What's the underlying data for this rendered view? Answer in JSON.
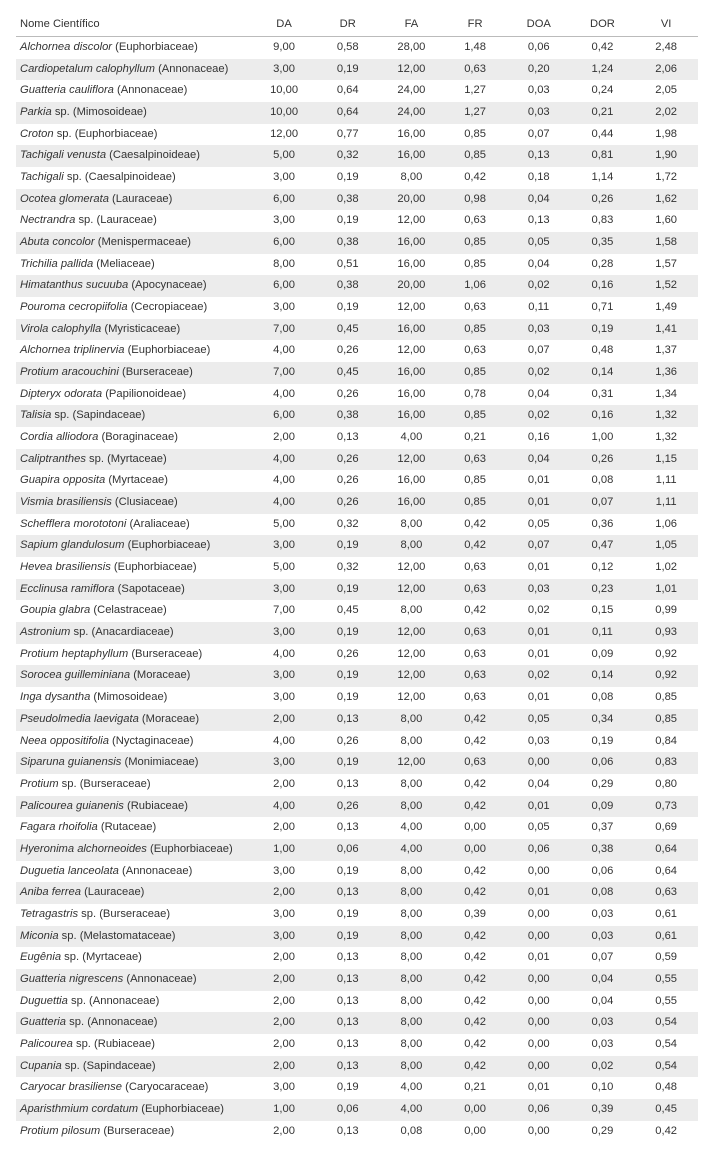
{
  "table": {
    "columns": [
      "Nome Científico",
      "DA",
      "DR",
      "FA",
      "FR",
      "DOA",
      "DOR",
      "VI"
    ],
    "col_widths": [
      "230px",
      "62px",
      "62px",
      "62px",
      "62px",
      "62px",
      "62px",
      "62px"
    ],
    "header_align": [
      "left",
      "center",
      "center",
      "center",
      "center",
      "center",
      "center",
      "center"
    ],
    "row_bg_even": "#ececec",
    "row_bg_odd": "#ffffff",
    "border_color": "#bbbbbb",
    "font_size": 11.2,
    "text_color": "#333333",
    "rows": [
      {
        "species": "Alchornea discolor",
        "family": "(Euphorbiaceae)",
        "DA": "9,00",
        "DR": "0,58",
        "FA": "28,00",
        "FR": "1,48",
        "DOA": "0,06",
        "DOR": "0,42",
        "VI": "2,48"
      },
      {
        "species": "Cardiopetalum calophyllum",
        "family": "(Annonaceae)",
        "DA": "3,00",
        "DR": "0,19",
        "FA": "12,00",
        "FR": "0,63",
        "DOA": "0,20",
        "DOR": "1,24",
        "VI": "2,06"
      },
      {
        "species": "Guatteria cauliflora",
        "family": "(Annonaceae)",
        "DA": "10,00",
        "DR": "0,64",
        "FA": "24,00",
        "FR": "1,27",
        "DOA": "0,03",
        "DOR": "0,24",
        "VI": "2,05"
      },
      {
        "species": "Parkia",
        "sp": true,
        "family": "(Mimosoideae)",
        "DA": "10,00",
        "DR": "0,64",
        "FA": "24,00",
        "FR": "1,27",
        "DOA": "0,03",
        "DOR": "0,21",
        "VI": "2,02"
      },
      {
        "species": "Croton",
        "sp": true,
        "family": "(Euphorbiaceae)",
        "DA": "12,00",
        "DR": "0,77",
        "FA": "16,00",
        "FR": "0,85",
        "DOA": "0,07",
        "DOR": "0,44",
        "VI": "1,98"
      },
      {
        "species": "Tachigali venusta",
        "family": "(Caesalpinoideae)",
        "DA": "5,00",
        "DR": "0,32",
        "FA": "16,00",
        "FR": "0,85",
        "DOA": "0,13",
        "DOR": "0,81",
        "VI": "1,90"
      },
      {
        "species": "Tachigali",
        "sp": true,
        "family": "(Caesalpinoideae)",
        "DA": "3,00",
        "DR": "0,19",
        "FA": "8,00",
        "FR": "0,42",
        "DOA": "0,18",
        "DOR": "1,14",
        "VI": "1,72"
      },
      {
        "species": "Ocotea glomerata",
        "family": "(Lauraceae)",
        "DA": "6,00",
        "DR": "0,38",
        "FA": "20,00",
        "FR": "0,98",
        "DOA": "0,04",
        "DOR": "0,26",
        "VI": "1,62"
      },
      {
        "species": "Nectrandra",
        "sp": true,
        "family": "(Lauraceae)",
        "DA": "3,00",
        "DR": "0,19",
        "FA": "12,00",
        "FR": "0,63",
        "DOA": "0,13",
        "DOR": "0,83",
        "VI": "1,60"
      },
      {
        "species": "Abuta concolor",
        "family": "(Menispermaceae)",
        "DA": "6,00",
        "DR": "0,38",
        "FA": "16,00",
        "FR": "0,85",
        "DOA": "0,05",
        "DOR": "0,35",
        "VI": "1,58"
      },
      {
        "species": "Trichilia pallida",
        "family": "(Meliaceae)",
        "DA": "8,00",
        "DR": "0,51",
        "FA": "16,00",
        "FR": "0,85",
        "DOA": "0,04",
        "DOR": "0,28",
        "VI": "1,57"
      },
      {
        "species": "Himatanthus sucuuba",
        "family": "(Apocynaceae)",
        "DA": "6,00",
        "DR": "0,38",
        "FA": "20,00",
        "FR": "1,06",
        "DOA": "0,02",
        "DOR": "0,16",
        "VI": "1,52"
      },
      {
        "species": "Pouroma cecropiifolia",
        "family": "(Cecropiaceae)",
        "DA": "3,00",
        "DR": "0,19",
        "FA": "12,00",
        "FR": "0,63",
        "DOA": "0,11",
        "DOR": "0,71",
        "VI": "1,49"
      },
      {
        "species": "Virola calophylla",
        "family": "(Myristicaceae)",
        "DA": "7,00",
        "DR": "0,45",
        "FA": "16,00",
        "FR": "0,85",
        "DOA": "0,03",
        "DOR": "0,19",
        "VI": "1,41"
      },
      {
        "species": "Alchornea triplinervia",
        "family": "(Euphorbiaceae)",
        "DA": "4,00",
        "DR": "0,26",
        "FA": "12,00",
        "FR": "0,63",
        "DOA": "0,07",
        "DOR": "0,48",
        "VI": "1,37"
      },
      {
        "species": "Protium aracouchini",
        "family": "(Burseraceae)",
        "DA": "7,00",
        "DR": "0,45",
        "FA": "16,00",
        "FR": "0,85",
        "DOA": "0,02",
        "DOR": "0,14",
        "VI": "1,36"
      },
      {
        "species": "Dipteryx odorata",
        "family": "(Papilionoideae)",
        "DA": "4,00",
        "DR": "0,26",
        "FA": "16,00",
        "FR": "0,78",
        "DOA": "0,04",
        "DOR": "0,31",
        "VI": "1,34"
      },
      {
        "species": "Talisia",
        "sp": true,
        "family": "(Sapindaceae)",
        "DA": "6,00",
        "DR": "0,38",
        "FA": "16,00",
        "FR": "0,85",
        "DOA": "0,02",
        "DOR": "0,16",
        "VI": "1,32"
      },
      {
        "species": "Cordia alliodora",
        "family": "(Boraginaceae)",
        "DA": "2,00",
        "DR": "0,13",
        "FA": "4,00",
        "FR": "0,21",
        "DOA": "0,16",
        "DOR": "1,00",
        "VI": "1,32"
      },
      {
        "species": "Caliptranthes",
        "sp": true,
        "family": "(Myrtaceae)",
        "DA": "4,00",
        "DR": "0,26",
        "FA": "12,00",
        "FR": "0,63",
        "DOA": "0,04",
        "DOR": "0,26",
        "VI": "1,15"
      },
      {
        "species": "Guapira opposita",
        "family": "(Myrtaceae)",
        "DA": "4,00",
        "DR": "0,26",
        "FA": "16,00",
        "FR": "0,85",
        "DOA": "0,01",
        "DOR": "0,08",
        "VI": "1,11"
      },
      {
        "species": "Vismia brasiliensis",
        "family": "(Clusiaceae)",
        "DA": "4,00",
        "DR": "0,26",
        "FA": "16,00",
        "FR": "0,85",
        "DOA": "0,01",
        "DOR": "0,07",
        "VI": "1,11"
      },
      {
        "species": "Schefflera morototoni",
        "family": "(Araliaceae)",
        "DA": "5,00",
        "DR": "0,32",
        "FA": "8,00",
        "FR": "0,42",
        "DOA": "0,05",
        "DOR": "0,36",
        "VI": "1,06"
      },
      {
        "species": "Sapium glandulosum",
        "family": "(Euphorbiaceae)",
        "DA": "3,00",
        "DR": "0,19",
        "FA": "8,00",
        "FR": "0,42",
        "DOA": "0,07",
        "DOR": "0,47",
        "VI": "1,05"
      },
      {
        "species": "Hevea brasiliensis",
        "family": "(Euphorbiaceae)",
        "DA": "5,00",
        "DR": "0,32",
        "FA": "12,00",
        "FR": "0,63",
        "DOA": "0,01",
        "DOR": "0,12",
        "VI": "1,02"
      },
      {
        "species": "Ecclinusa ramiflora",
        "family": "(Sapotaceae)",
        "DA": "3,00",
        "DR": "0,19",
        "FA": "12,00",
        "FR": "0,63",
        "DOA": "0,03",
        "DOR": "0,23",
        "VI": "1,01"
      },
      {
        "species": "Goupia glabra",
        "family": "(Celastraceae)",
        "DA": "7,00",
        "DR": "0,45",
        "FA": "8,00",
        "FR": "0,42",
        "DOA": "0,02",
        "DOR": "0,15",
        "VI": "0,99"
      },
      {
        "species": "Astronium",
        "sp": true,
        "family": "(Anacardiaceae)",
        "DA": "3,00",
        "DR": "0,19",
        "FA": "12,00",
        "FR": "0,63",
        "DOA": "0,01",
        "DOR": "0,11",
        "VI": "0,93"
      },
      {
        "species": "Protium heptaphyllum",
        "family": "(Burseraceae)",
        "DA": "4,00",
        "DR": "0,26",
        "FA": "12,00",
        "FR": "0,63",
        "DOA": "0,01",
        "DOR": "0,09",
        "VI": "0,92"
      },
      {
        "species": "Sorocea guilleminiana",
        "family": "(Moraceae)",
        "DA": "3,00",
        "DR": "0,19",
        "FA": "12,00",
        "FR": "0,63",
        "DOA": "0,02",
        "DOR": "0,14",
        "VI": "0,92"
      },
      {
        "species": "Inga dysantha",
        "family": "(Mimosoideae)",
        "DA": "3,00",
        "DR": "0,19",
        "FA": "12,00",
        "FR": "0,63",
        "DOA": "0,01",
        "DOR": "0,08",
        "VI": "0,85"
      },
      {
        "species": "Pseudolmedia laevigata",
        "family": "(Moraceae)",
        "DA": "2,00",
        "DR": "0,13",
        "FA": "8,00",
        "FR": "0,42",
        "DOA": "0,05",
        "DOR": "0,34",
        "VI": "0,85"
      },
      {
        "species": "Neea oppositifolia",
        "family": "(Nyctaginaceae)",
        "DA": "4,00",
        "DR": "0,26",
        "FA": "8,00",
        "FR": "0,42",
        "DOA": "0,03",
        "DOR": "0,19",
        "VI": "0,84"
      },
      {
        "species": "Siparuna guianensis",
        "family": "(Monimiaceae)",
        "DA": "3,00",
        "DR": "0,19",
        "FA": "12,00",
        "FR": "0,63",
        "DOA": "0,00",
        "DOR": "0,06",
        "VI": "0,83"
      },
      {
        "species": "Protium",
        "sp": true,
        "family": "(Burseraceae)",
        "DA": "2,00",
        "DR": "0,13",
        "FA": "8,00",
        "FR": "0,42",
        "DOA": "0,04",
        "DOR": "0,29",
        "VI": "0,80"
      },
      {
        "species": "Palicourea guianenis",
        "family": "(Rubiaceae)",
        "DA": "4,00",
        "DR": "0,26",
        "FA": "8,00",
        "FR": "0,42",
        "DOA": "0,01",
        "DOR": "0,09",
        "VI": "0,73"
      },
      {
        "species": "Fagara rhoifolia",
        "family": "(Rutaceae)",
        "DA": "2,00",
        "DR": "0,13",
        "FA": "4,00",
        "FR": "0,00",
        "DOA": "0,05",
        "DOR": "0,37",
        "VI": "0,69"
      },
      {
        "species": "Hyeronima alchorneoides",
        "family": "(Euphorbiaceae)",
        "DA": "1,00",
        "DR": "0,06",
        "FA": "4,00",
        "FR": "0,00",
        "DOA": "0,06",
        "DOR": "0,38",
        "VI": "0,64"
      },
      {
        "species": "Duguetia lanceolata",
        "family": "(Annonaceae)",
        "DA": "3,00",
        "DR": "0,19",
        "FA": "8,00",
        "FR": "0,42",
        "DOA": "0,00",
        "DOR": "0,06",
        "VI": "0,64"
      },
      {
        "species": "Aniba ferrea",
        "family": "(Lauraceae)",
        "DA": "2,00",
        "DR": "0,13",
        "FA": "8,00",
        "FR": "0,42",
        "DOA": "0,01",
        "DOR": "0,08",
        "VI": "0,63"
      },
      {
        "species": "Tetragastris",
        "sp": true,
        "family": "(Burseraceae)",
        "DA": "3,00",
        "DR": "0,19",
        "FA": "8,00",
        "FR": "0,39",
        "DOA": "0,00",
        "DOR": "0,03",
        "VI": "0,61"
      },
      {
        "species": "Miconia",
        "sp": true,
        "family": "(Melastomataceae)",
        "DA": "3,00",
        "DR": "0,19",
        "FA": "8,00",
        "FR": "0,42",
        "DOA": "0,00",
        "DOR": "0,03",
        "VI": "0,61"
      },
      {
        "species": "Eugênia",
        "sp": true,
        "family": "(Myrtaceae)",
        "DA": "2,00",
        "DR": "0,13",
        "FA": "8,00",
        "FR": "0,42",
        "DOA": "0,01",
        "DOR": "0,07",
        "VI": "0,59"
      },
      {
        "species": "Guatteria nigrescens",
        "family": "(Annonaceae)",
        "DA": "2,00",
        "DR": "0,13",
        "FA": "8,00",
        "FR": "0,42",
        "DOA": "0,00",
        "DOR": "0,04",
        "VI": "0,55"
      },
      {
        "species": "Duguettia",
        "sp": true,
        "family": "(Annonaceae)",
        "DA": "2,00",
        "DR": "0,13",
        "FA": "8,00",
        "FR": "0,42",
        "DOA": "0,00",
        "DOR": "0,04",
        "VI": "0,55"
      },
      {
        "species": "Guatteria",
        "sp": true,
        "family": "(Annonaceae)",
        "DA": "2,00",
        "DR": "0,13",
        "FA": "8,00",
        "FR": "0,42",
        "DOA": "0,00",
        "DOR": "0,03",
        "VI": "0,54"
      },
      {
        "species": "Palicourea",
        "sp": true,
        "family": "(Rubiaceae)",
        "DA": "2,00",
        "DR": "0,13",
        "FA": "8,00",
        "FR": "0,42",
        "DOA": "0,00",
        "DOR": "0,03",
        "VI": "0,54"
      },
      {
        "species": "Cupania",
        "sp": true,
        "family": "(Sapindaceae)",
        "DA": "2,00",
        "DR": "0,13",
        "FA": "8,00",
        "FR": "0,42",
        "DOA": "0,00",
        "DOR": "0,02",
        "VI": "0,54"
      },
      {
        "species": "Caryocar brasiliense",
        "family": "(Caryocaraceae)",
        "DA": "3,00",
        "DR": "0,19",
        "FA": "4,00",
        "FR": "0,21",
        "DOA": "0,01",
        "DOR": "0,10",
        "VI": "0,48"
      },
      {
        "species": "Aparisthmium cordatum",
        "family": "(Euphorbiaceae)",
        "DA": "1,00",
        "DR": "0,06",
        "FA": "4,00",
        "FR": "0,00",
        "DOA": "0,06",
        "DOR": "0,39",
        "VI": "0,45"
      },
      {
        "species": "Protium pilosum",
        "family": "(Burseraceae)",
        "DA": "2,00",
        "DR": "0,13",
        "FA": "0,08",
        "FR": "0,00",
        "DOA": "0,00",
        "DOR": "0,29",
        "VI": "0,42"
      }
    ]
  }
}
